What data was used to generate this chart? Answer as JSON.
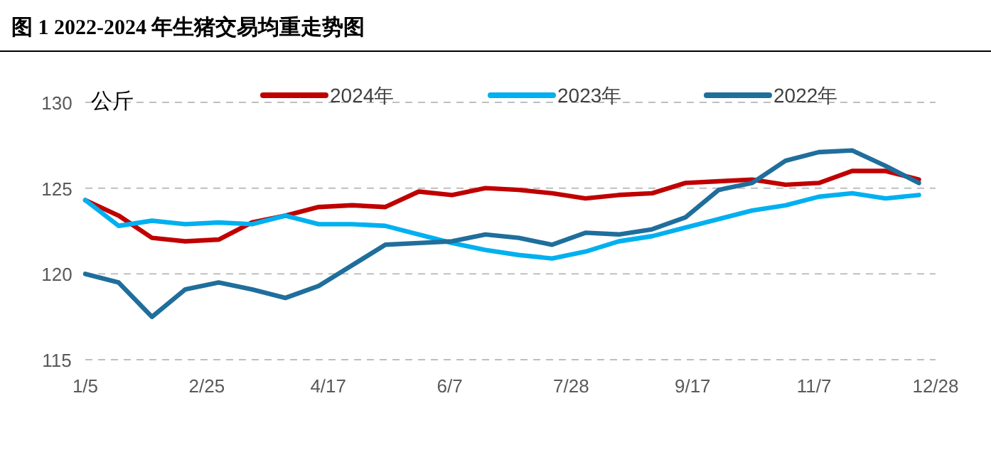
{
  "chart_data": {
    "type": "line",
    "title": "图 1 2022-2024 年生猪交易均重走势图",
    "ylabel": "公斤",
    "x": [
      "--01-05",
      "--01-19",
      "--02-02",
      "--02-16",
      "--03-02",
      "--03-16",
      "--03-30",
      "--04-13",
      "--04-27",
      "--05-11",
      "--05-25",
      "--06-08",
      "--06-22",
      "--07-06",
      "--07-20",
      "--08-03",
      "--08-17",
      "--08-31",
      "--09-14",
      "--09-28",
      "--10-12",
      "--10-26",
      "--11-09",
      "--11-23",
      "--12-07",
      "--12-21"
    ],
    "series": [
      {
        "name": "2024年",
        "color": "#c00000",
        "values": [
          124.3,
          123.4,
          122.1,
          121.9,
          122.0,
          123.0,
          123.4,
          123.9,
          124.0,
          123.9,
          124.8,
          124.6,
          125.0,
          124.9,
          124.7,
          124.4,
          124.6,
          124.7,
          125.3,
          125.4,
          125.5,
          125.2,
          125.3,
          126.0,
          126.0,
          125.5
        ]
      },
      {
        "name": "2023年",
        "color": "#00b0f0",
        "values": [
          124.3,
          122.8,
          123.1,
          122.9,
          123.0,
          122.9,
          123.4,
          122.9,
          122.9,
          122.8,
          122.3,
          121.8,
          121.4,
          121.1,
          120.9,
          121.3,
          121.9,
          122.2,
          122.7,
          123.2,
          123.7,
          124.0,
          124.5,
          124.7,
          124.4,
          124.6
        ]
      },
      {
        "name": "2022年",
        "color": "#1f6e9c",
        "values": [
          120.0,
          119.5,
          117.5,
          119.1,
          119.5,
          119.1,
          118.6,
          119.3,
          120.5,
          121.7,
          121.8,
          121.9,
          122.3,
          122.1,
          121.7,
          122.4,
          122.3,
          122.6,
          123.3,
          124.9,
          125.3,
          126.6,
          127.1,
          127.2,
          126.3,
          125.3
        ]
      }
    ],
    "xlim": [
      "--01-05",
      "--12-28"
    ],
    "xticks": [
      {
        "value": "--01-05",
        "label": "1/5"
      },
      {
        "value": "--02-25",
        "label": "2/25"
      },
      {
        "value": "--04-17",
        "label": "4/17"
      },
      {
        "value": "--06-07",
        "label": "6/7"
      },
      {
        "value": "--07-28",
        "label": "7/28"
      },
      {
        "value": "--09-17",
        "label": "9/17"
      },
      {
        "value": "--11-07",
        "label": "11/7"
      },
      {
        "value": "--12-28",
        "label": "12/28"
      }
    ],
    "ylim": [
      115,
      130
    ],
    "yticks": [
      115,
      120,
      125,
      130
    ],
    "grid": "y",
    "legend": "top",
    "marker": "none",
    "line_style": "solid"
  }
}
